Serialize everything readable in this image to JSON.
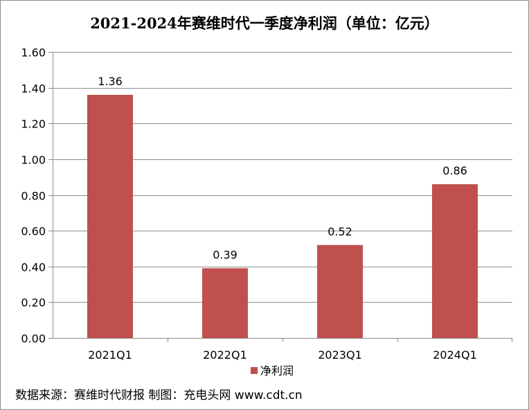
{
  "chart_data": {
    "type": "bar",
    "title": "2021-2024年赛维时代一季度净利润（单位：亿元）",
    "categories": [
      "2021Q1",
      "2022Q1",
      "2023Q1",
      "2024Q1"
    ],
    "series": [
      {
        "name": "净利润",
        "values": [
          1.36,
          0.39,
          0.52,
          0.86
        ],
        "color": "#C0504D"
      }
    ],
    "data_labels": [
      "1.36",
      "0.39",
      "0.52",
      "0.86"
    ],
    "ylim": [
      0,
      1.6
    ],
    "yticks": [
      "0.00",
      "0.20",
      "0.40",
      "0.60",
      "0.80",
      "1.00",
      "1.20",
      "1.40",
      "1.60"
    ],
    "grid": true,
    "legend": "bottom"
  },
  "footer": {
    "source": "数据来源：赛维时代财报 制图：充电头网 www.cdt.cn"
  }
}
